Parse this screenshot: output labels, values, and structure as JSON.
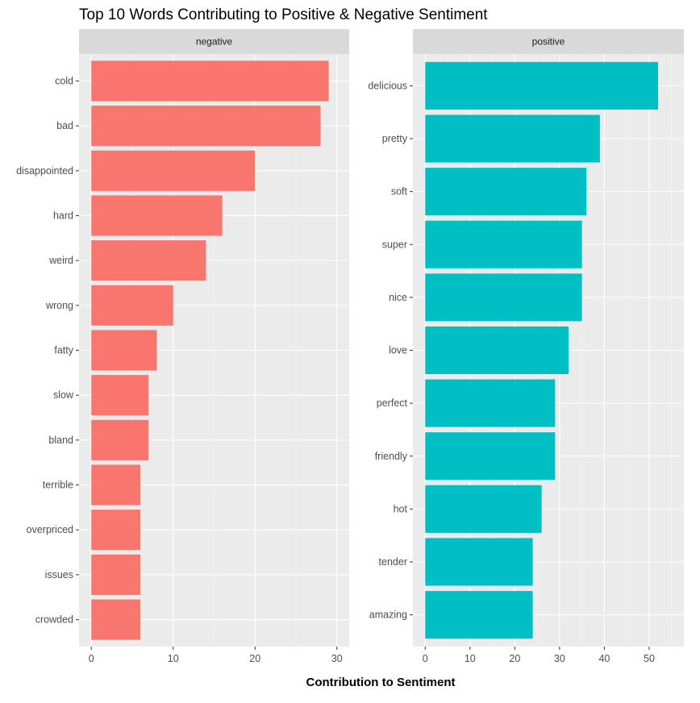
{
  "chart_data": {
    "type": "bar",
    "title": "Top 10 Words Contributing to Positive & Negative Sentiment",
    "xlabel": "Contribution to Sentiment",
    "ylabel": "",
    "orientation": "horizontal",
    "grid": true,
    "legend": "none",
    "panels": [
      {
        "name": "negative",
        "color": "#F8766D",
        "xlim": [
          0,
          30
        ],
        "ticks": [
          0,
          10,
          20,
          30
        ],
        "tick_labels": [
          "0",
          "10",
          "20",
          "30"
        ],
        "categories": [
          "cold",
          "bad",
          "disappointed",
          "hard",
          "weird",
          "wrong",
          "fatty",
          "slow",
          "bland",
          "terrible",
          "overpriced",
          "issues",
          "crowded"
        ],
        "values": [
          29,
          28,
          20,
          16,
          14,
          10,
          8,
          7,
          7,
          6,
          6,
          6,
          6
        ]
      },
      {
        "name": "positive",
        "color": "#00BFC4",
        "xlim": [
          0,
          55
        ],
        "ticks": [
          0,
          10,
          20,
          30,
          40,
          50
        ],
        "tick_labels": [
          "0",
          "10",
          "20",
          "30",
          "40",
          "50"
        ],
        "categories": [
          "delicious",
          "pretty",
          "soft",
          "super",
          "nice",
          "love",
          "perfect",
          "friendly",
          "hot",
          "tender",
          "amazing"
        ],
        "values": [
          52,
          39,
          36,
          35,
          35,
          32,
          29,
          29,
          26,
          24,
          24
        ]
      }
    ]
  },
  "colors": {
    "panel_background": "#EBEBEB",
    "strip_background": "#D9D9D9",
    "grid_major": "#FFFFFF",
    "text_muted": "#4D4D4D"
  }
}
